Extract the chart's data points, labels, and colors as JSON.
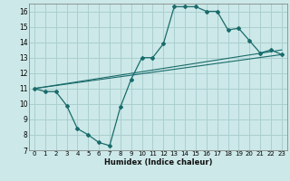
{
  "title": "",
  "xlabel": "Humidex (Indice chaleur)",
  "bg_color": "#cce8e8",
  "line_color": "#1a6b6b",
  "grid_color": "#aacfcf",
  "xlim": [
    -0.5,
    23.5
  ],
  "ylim": [
    7,
    16.5
  ],
  "xticks": [
    0,
    1,
    2,
    3,
    4,
    5,
    6,
    7,
    8,
    9,
    10,
    11,
    12,
    13,
    14,
    15,
    16,
    17,
    18,
    19,
    20,
    21,
    22,
    23
  ],
  "yticks": [
    7,
    8,
    9,
    10,
    11,
    12,
    13,
    14,
    15,
    16
  ],
  "curve1_x": [
    0,
    1,
    2,
    3,
    4,
    5,
    6,
    7,
    8,
    9,
    10,
    11,
    12,
    13,
    14,
    15,
    16,
    17,
    18,
    19,
    20,
    21,
    22,
    23
  ],
  "curve1_y": [
    11.0,
    10.8,
    10.8,
    9.9,
    8.4,
    8.0,
    7.5,
    7.3,
    9.8,
    11.6,
    13.0,
    13.0,
    13.9,
    16.3,
    16.3,
    16.3,
    16.0,
    16.0,
    14.8,
    14.9,
    14.1,
    13.3,
    13.5,
    13.2
  ],
  "line1_x": [
    0,
    23
  ],
  "line1_y": [
    11.0,
    13.2
  ],
  "line2_x": [
    0,
    23
  ],
  "line2_y": [
    11.0,
    13.5
  ]
}
